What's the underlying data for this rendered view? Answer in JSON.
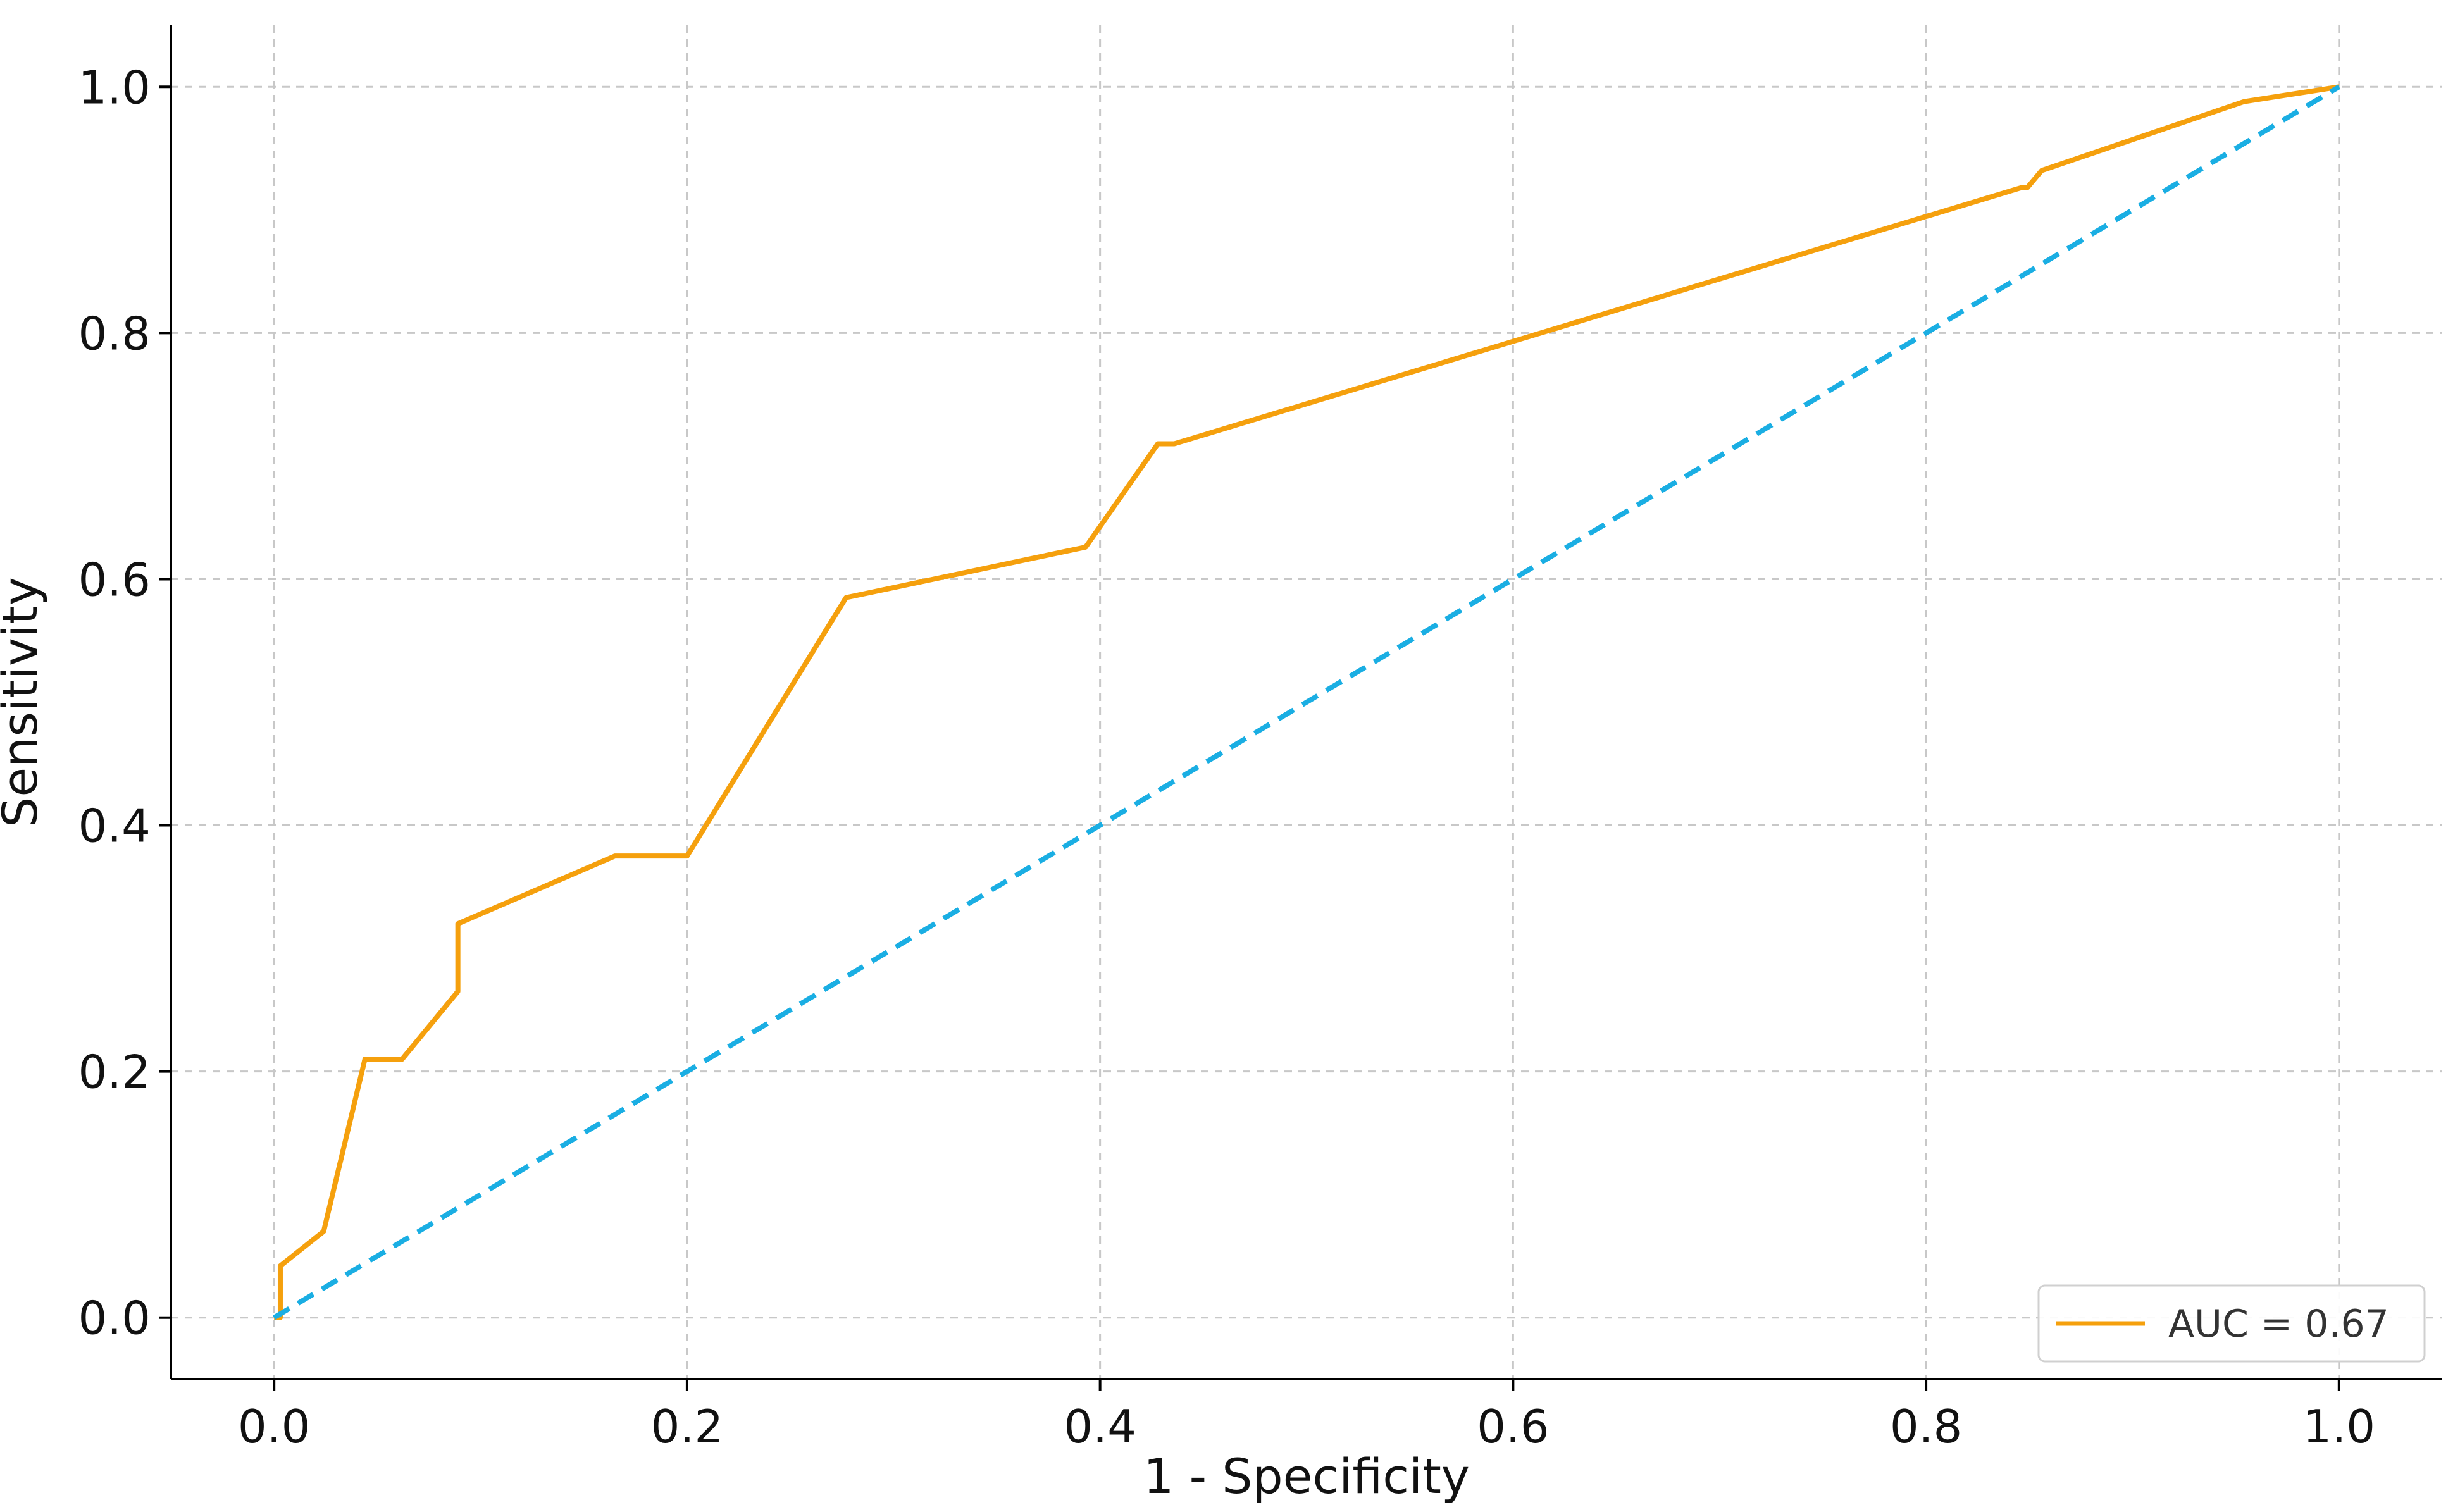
{
  "chart_data": {
    "type": "line",
    "title": "",
    "xlabel": "1 - Specificity",
    "ylabel": "Sensitivity",
    "xlim": [
      -0.05,
      1.05
    ],
    "ylim": [
      -0.05,
      1.05
    ],
    "xticks": [
      0.0,
      0.2,
      0.4,
      0.6,
      0.8,
      1.0
    ],
    "xtick_labels": [
      "0.0",
      "0.2",
      "0.4",
      "0.6",
      "0.8",
      "1.0"
    ],
    "yticks": [
      0.0,
      0.2,
      0.4,
      0.6,
      0.8,
      1.0
    ],
    "ytick_labels": [
      "0.0",
      "0.2",
      "0.4",
      "0.6",
      "0.8",
      "1.0"
    ],
    "grid": true,
    "legend_position": "bottom-right",
    "series": [
      {
        "name": "AUC = 0.67",
        "color": "#f5a00d",
        "style": "solid",
        "x": [
          0.0,
          0.003,
          0.003,
          0.024,
          0.044,
          0.062,
          0.089,
          0.089,
          0.165,
          0.2,
          0.277,
          0.393,
          0.428,
          0.436,
          0.846,
          0.849,
          0.856,
          0.954,
          1.0
        ],
        "y": [
          0.0,
          0.0,
          0.042,
          0.07,
          0.21,
          0.21,
          0.265,
          0.32,
          0.375,
          0.375,
          0.585,
          0.626,
          0.71,
          0.71,
          0.918,
          0.918,
          0.932,
          0.988,
          1.0
        ]
      },
      {
        "name": "",
        "color": "#1aaee3",
        "style": "dashed",
        "x": [
          0.0,
          1.0
        ],
        "y": [
          0.0,
          1.0
        ]
      }
    ]
  }
}
